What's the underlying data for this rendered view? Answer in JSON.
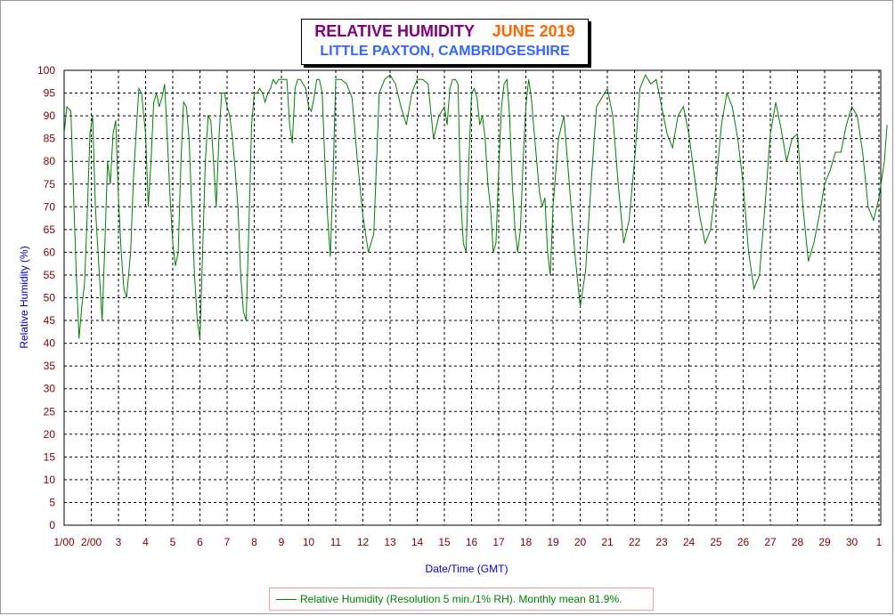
{
  "title": {
    "main": "RELATIVE HUMIDITY",
    "date": "JUNE 2019",
    "subtitle": "LITTLE PAXTON, CAMBRIDGESHIRE"
  },
  "legend": {
    "text": "Relative Humidity (Resolution 5 min./1% RH). Monthly mean 81.9%."
  },
  "colors": {
    "line": "#008000",
    "ticks": "#800000",
    "axis_label": "#0000cc",
    "title_main": "#800080",
    "title_date": "#ff6600",
    "subtitle": "#3366ff"
  },
  "chart_data": {
    "type": "line",
    "title": "RELATIVE HUMIDITY JUNE 2019",
    "subtitle": "LITTLE PAXTON, CAMBRIDGESHIRE",
    "xlabel": "Date/Time (GMT)",
    "ylabel": "Relative Humidity (%)",
    "xlim": [
      1,
      31.3
    ],
    "ylim": [
      0,
      100
    ],
    "grid": true,
    "legend_position": "bottom",
    "x_tick_values": [
      1,
      2,
      3,
      4,
      5,
      6,
      7,
      8,
      9,
      10,
      11,
      12,
      13,
      14,
      15,
      16,
      17,
      18,
      19,
      20,
      21,
      22,
      23,
      24,
      25,
      26,
      27,
      28,
      29,
      30,
      31
    ],
    "x_tick_labels": [
      "1/00",
      "2/00",
      "3",
      "4",
      "5",
      "6",
      "7",
      "8",
      "9",
      "10",
      "11",
      "12",
      "13",
      "14",
      "15",
      "16",
      "17",
      "18",
      "19",
      "20",
      "21",
      "22",
      "23",
      "24",
      "25",
      "26",
      "27",
      "28",
      "29",
      "30",
      "1"
    ],
    "y_ticks": [
      0,
      5,
      10,
      15,
      20,
      25,
      30,
      35,
      40,
      45,
      50,
      55,
      60,
      65,
      70,
      75,
      80,
      85,
      90,
      95,
      100
    ],
    "series": [
      {
        "name": "Relative Humidity (Resolution 5 min./1% RH). Monthly mean 81.9%.",
        "x": [
          1.0,
          1.1,
          1.25,
          1.35,
          1.45,
          1.55,
          1.65,
          1.75,
          1.85,
          1.95,
          2.05,
          2.15,
          2.3,
          2.4,
          2.5,
          2.6,
          2.7,
          2.8,
          2.9,
          3.0,
          3.1,
          3.2,
          3.3,
          3.45,
          3.55,
          3.65,
          3.75,
          3.85,
          4.0,
          4.1,
          4.2,
          4.3,
          4.4,
          4.5,
          4.6,
          4.7,
          4.8,
          4.9,
          5.0,
          5.1,
          5.2,
          5.3,
          5.4,
          5.5,
          5.6,
          5.7,
          5.8,
          5.9,
          6.0,
          6.1,
          6.2,
          6.3,
          6.4,
          6.5,
          6.6,
          6.7,
          6.8,
          6.9,
          7.0,
          7.1,
          7.2,
          7.3,
          7.4,
          7.5,
          7.6,
          7.7,
          7.8,
          7.9,
          8.0,
          8.1,
          8.2,
          8.3,
          8.4,
          8.5,
          8.6,
          8.7,
          8.8,
          8.9,
          9.0,
          9.1,
          9.2,
          9.3,
          9.4,
          9.5,
          9.6,
          9.7,
          9.8,
          9.9,
          10.0,
          10.1,
          10.2,
          10.3,
          10.4,
          10.5,
          10.6,
          10.7,
          10.8,
          10.9,
          11.0,
          11.2,
          11.4,
          11.6,
          11.8,
          12.0,
          12.2,
          12.4,
          12.6,
          12.8,
          13.0,
          13.2,
          13.4,
          13.6,
          13.8,
          14.0,
          14.2,
          14.4,
          14.6,
          14.8,
          15.0,
          15.1,
          15.2,
          15.3,
          15.4,
          15.5,
          15.6,
          15.7,
          15.8,
          15.9,
          16.0,
          16.1,
          16.2,
          16.3,
          16.4,
          16.5,
          16.6,
          16.7,
          16.8,
          16.9,
          17.0,
          17.1,
          17.2,
          17.3,
          17.4,
          17.5,
          17.6,
          17.7,
          17.8,
          17.9,
          18.0,
          18.1,
          18.2,
          18.3,
          18.4,
          18.5,
          18.6,
          18.7,
          18.8,
          18.9,
          19.0,
          19.2,
          19.4,
          19.6,
          19.8,
          20.0,
          20.2,
          20.4,
          20.6,
          20.8,
          21.0,
          21.2,
          21.4,
          21.6,
          21.8,
          22.0,
          22.2,
          22.4,
          22.6,
          22.8,
          23.0,
          23.2,
          23.4,
          23.6,
          23.8,
          24.0,
          24.2,
          24.4,
          24.6,
          24.8,
          25.0,
          25.2,
          25.4,
          25.6,
          25.8,
          26.0,
          26.2,
          26.4,
          26.6,
          26.8,
          27.0,
          27.2,
          27.4,
          27.6,
          27.8,
          28.0,
          28.2,
          28.4,
          28.6,
          28.8,
          29.0,
          29.2,
          29.4,
          29.6,
          29.8,
          30.0,
          30.2,
          30.4,
          30.6,
          30.8,
          31.0,
          31.2,
          31.3
        ],
        "y": [
          86,
          92,
          91,
          72,
          55,
          41,
          48,
          53,
          68,
          86,
          90,
          70,
          55,
          45,
          62,
          80,
          75,
          86,
          89,
          72,
          60,
          52,
          50,
          60,
          76,
          86,
          96,
          95,
          86,
          70,
          80,
          93,
          95,
          92,
          94,
          97,
          85,
          72,
          62,
          57,
          60,
          80,
          93,
          92,
          85,
          70,
          55,
          45,
          41,
          60,
          80,
          90,
          89,
          80,
          70,
          85,
          95,
          95,
          92,
          90,
          85,
          78,
          70,
          55,
          47,
          45,
          65,
          88,
          95,
          95,
          96,
          95,
          93,
          95,
          96,
          98,
          97,
          98,
          98,
          98,
          98,
          88,
          84,
          96,
          98,
          98,
          97,
          96,
          92,
          91,
          94,
          98,
          98,
          95,
          80,
          68,
          59,
          76,
          98,
          98,
          97,
          94,
          80,
          68,
          60,
          64,
          95,
          98,
          99,
          97,
          92,
          88,
          95,
          98,
          98,
          97,
          85,
          90,
          92,
          88,
          96,
          98,
          98,
          97,
          72,
          62,
          60,
          80,
          95,
          96,
          94,
          88,
          90,
          85,
          75,
          70,
          60,
          62,
          78,
          92,
          97,
          98,
          90,
          75,
          65,
          60,
          65,
          80,
          92,
          98,
          94,
          87,
          80,
          73,
          70,
          72,
          60,
          55,
          70,
          85,
          90,
          75,
          60,
          48,
          56,
          75,
          92,
          94,
          96,
          90,
          75,
          62,
          67,
          80,
          96,
          99,
          97,
          98,
          92,
          86,
          83,
          90,
          92,
          86,
          77,
          68,
          62,
          65,
          75,
          88,
          95,
          92,
          85,
          75,
          60,
          52,
          55,
          70,
          86,
          93,
          87,
          80,
          85,
          86,
          70,
          58,
          62,
          68,
          75,
          78,
          82,
          82,
          88,
          92,
          90,
          82,
          70,
          67,
          72,
          80,
          88
        ]
      }
    ]
  }
}
